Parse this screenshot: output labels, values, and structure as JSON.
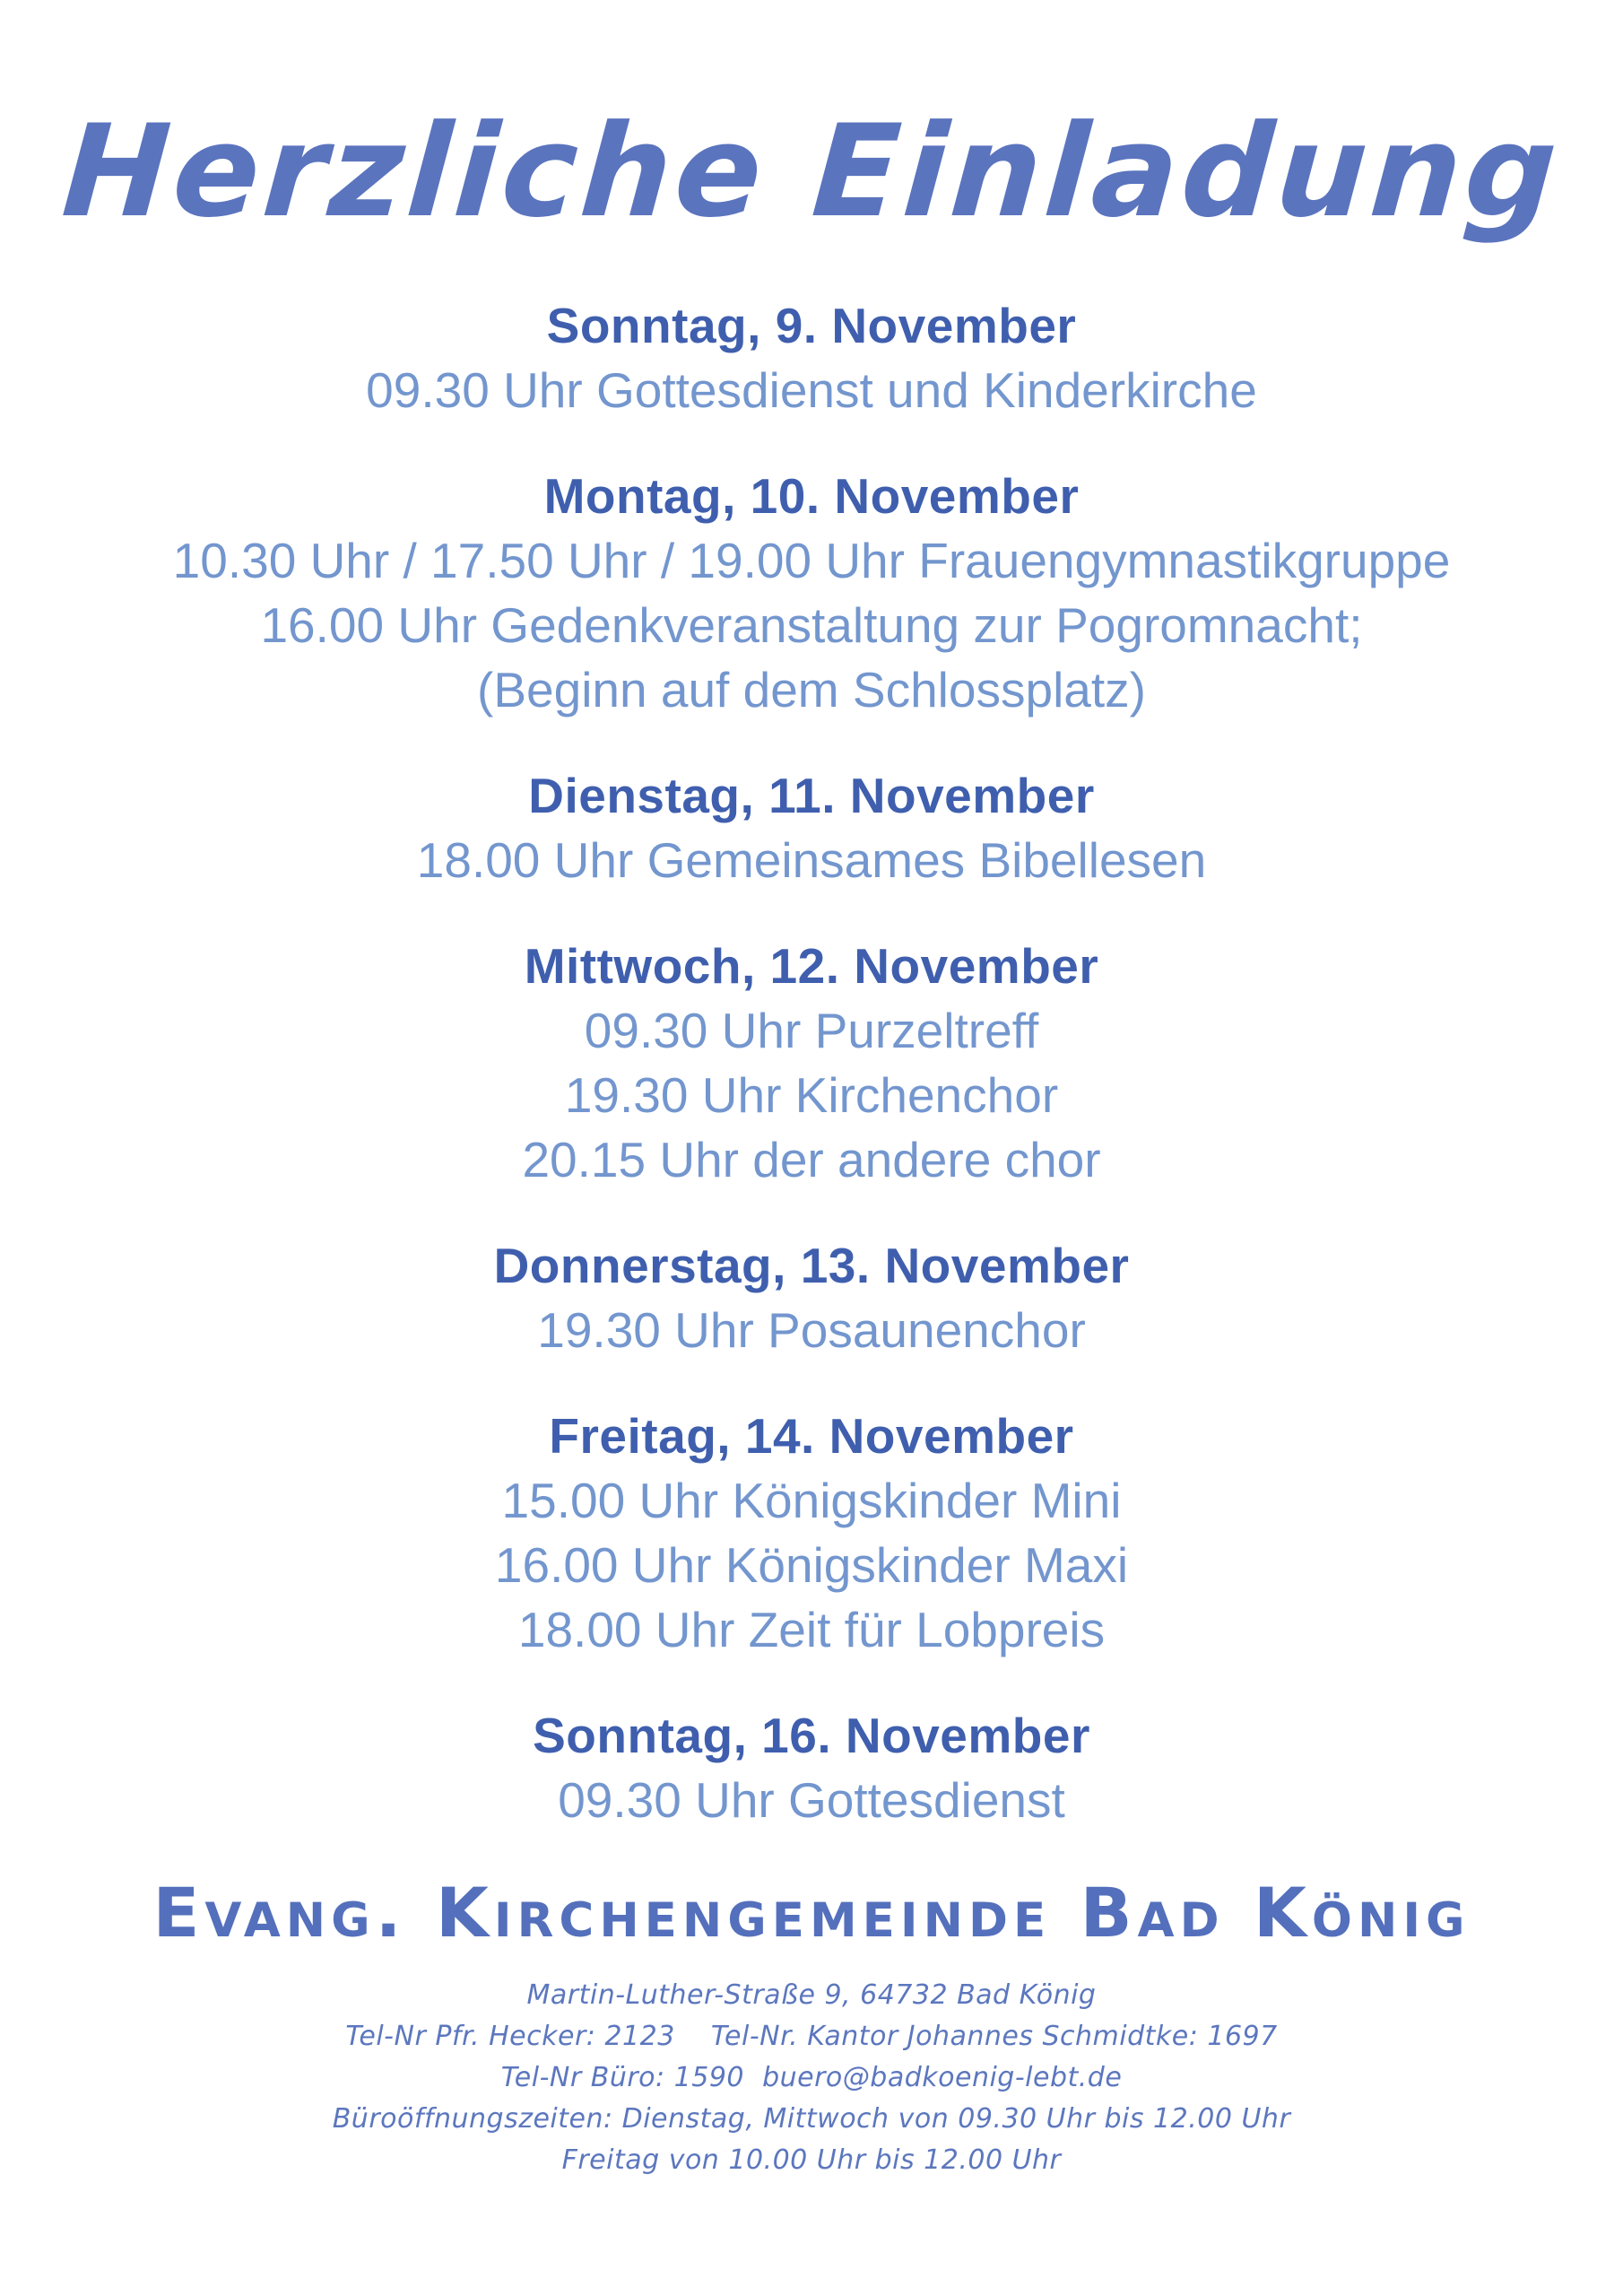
{
  "page": {
    "title": "Herzliche Einladung"
  },
  "sections": [
    {
      "day": "Sonntag, 9. November",
      "events": [
        "09.30 Uhr Gottesdienst und Kinderkirche"
      ]
    },
    {
      "day": "Montag, 10. November",
      "events": [
        "10.30 Uhr / 17.50 Uhr / 19.00 Uhr Frauengymnastikgruppe",
        "16.00 Uhr Gedenkveranstaltung zur Pogromnacht;",
        "(Beginn auf dem Schlossplatz)"
      ]
    },
    {
      "day": "Dienstag, 11. November",
      "events": [
        "18.00 Uhr Gemeinsames Bibellesen"
      ]
    },
    {
      "day": "Mittwoch, 12. November",
      "events": [
        "09.30 Uhr Purzeltreff",
        "19.30 Uhr Kirchenchor",
        "20.15 Uhr der andere chor"
      ]
    },
    {
      "day": "Donnerstag, 13. November",
      "events": [
        "19.30 Uhr Posaunenchor"
      ]
    },
    {
      "day": "Freitag, 14. November",
      "events": [
        "15.00 Uhr Königskinder Mini",
        "16.00 Uhr Königskinder Maxi",
        "18.00 Uhr Zeit für Lobpreis"
      ]
    },
    {
      "day": "Sonntag, 16. November",
      "events": [
        "09.30 Uhr Gottesdienst"
      ]
    }
  ],
  "footer": {
    "organization": "Evang. Kirchengemeinde Bad König",
    "contact_lines": [
      "Martin-Luther-Straße 9, 64732 Bad König",
      "Tel-Nr Pfr. Hecker: 2123    Tel-Nr. Kantor Johannes Schmidtke: 1697",
      "Tel-Nr Büro: 1590  buero@badkoenig-lebt.de",
      "Büroöffnungszeiten: Dienstag, Mittwoch von 09.30 Uhr bis 12.00 Uhr",
      "Freitag von 10.00 Uhr bis 12.00 Uhr"
    ]
  },
  "colors": {
    "title_blue": "#5b74be",
    "header_blue": "#3f5fae",
    "event_blue": "#7396ce",
    "footer_blue": "#5470bc",
    "contact_blue": "#5c77be",
    "background": "#ffffff"
  }
}
